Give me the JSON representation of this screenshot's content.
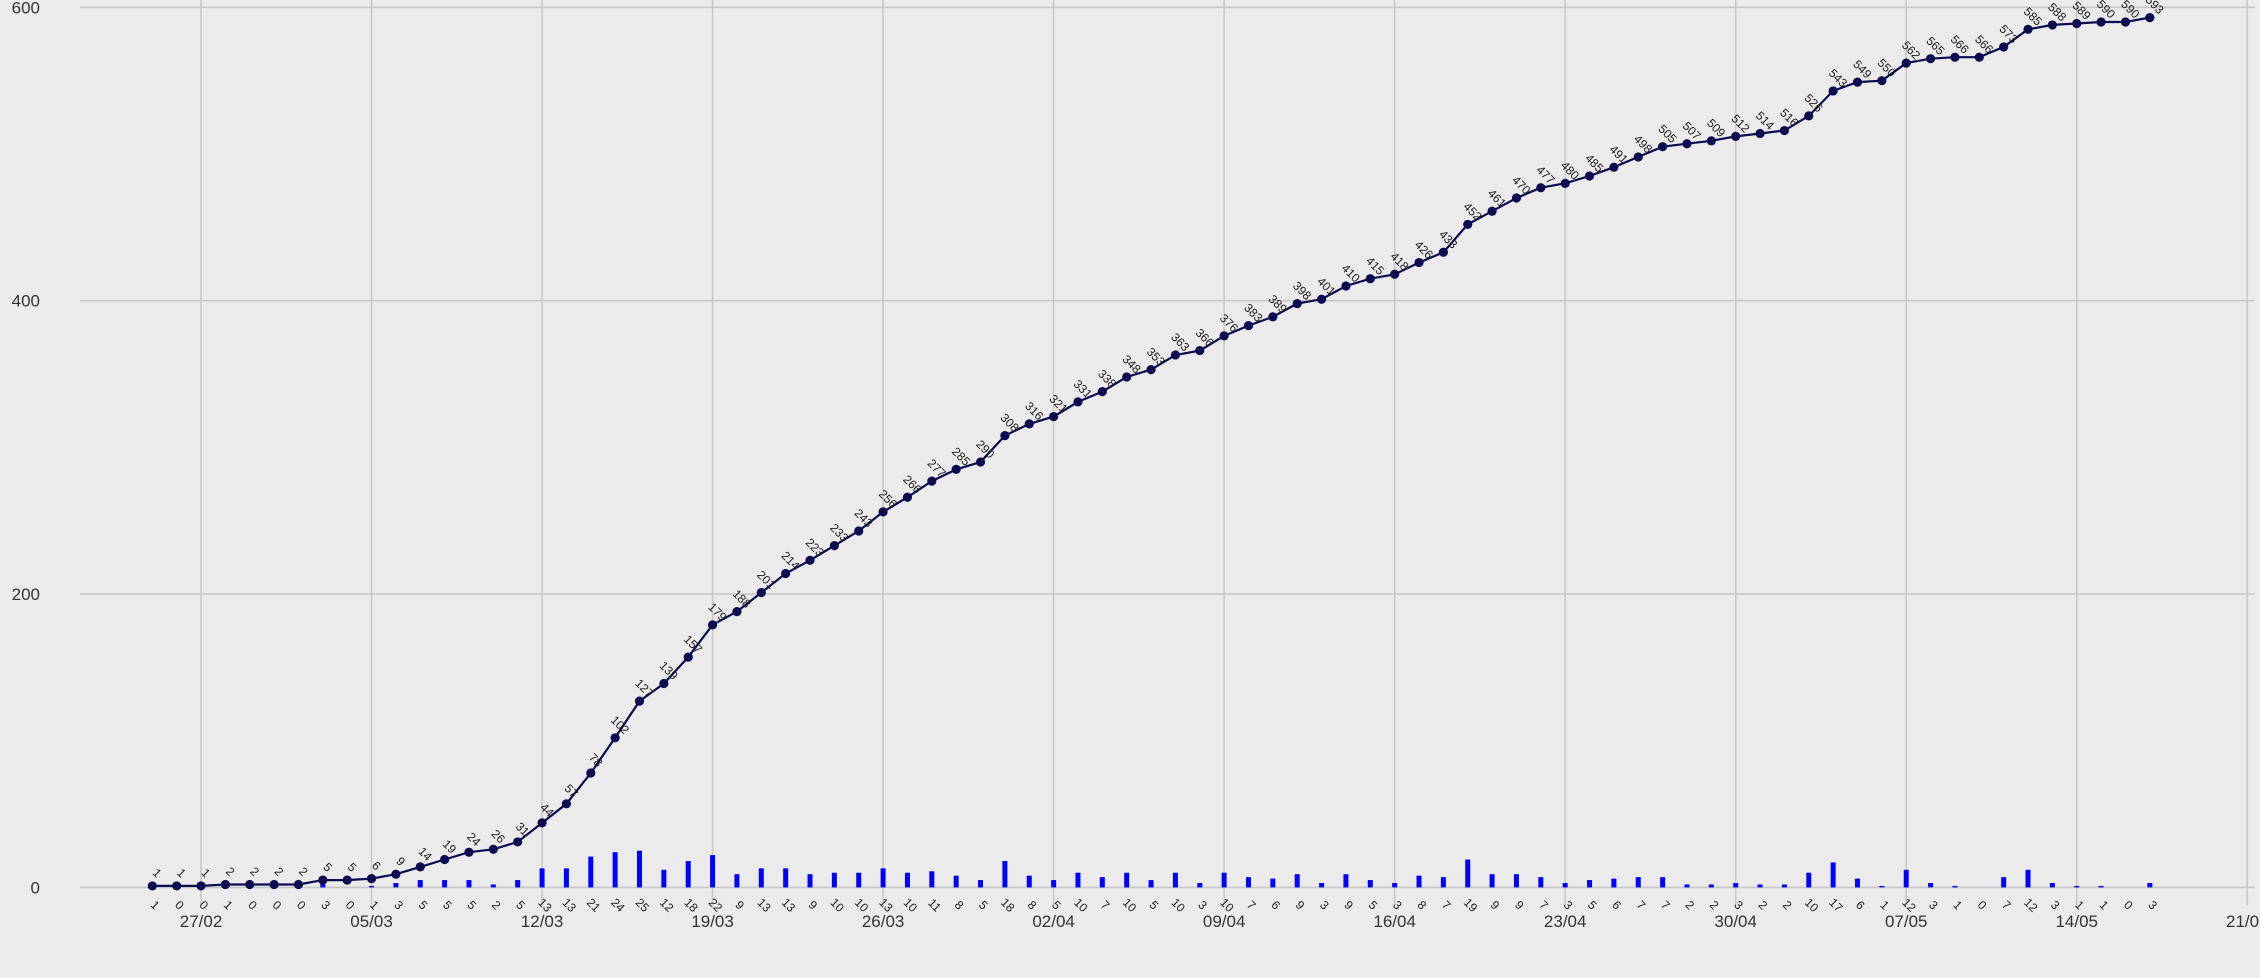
{
  "chart_data": {
    "type": "line",
    "title": "",
    "xlabel": "",
    "ylabel": "",
    "grid": true,
    "x_start": "25/02",
    "x_ticks": [
      "27/02",
      "05/03",
      "12/03",
      "19/03",
      "26/03",
      "02/04",
      "09/04",
      "16/04",
      "23/04",
      "30/04",
      "07/05",
      "14/05",
      "21/05"
    ],
    "y_ticks": [
      0,
      200,
      400,
      600
    ],
    "ylim": [
      -12,
      605
    ],
    "series": [
      {
        "type": "line",
        "color": "#0b0b4f",
        "values": [
          1,
          1,
          1,
          2,
          2,
          2,
          2,
          5,
          5,
          6,
          9,
          14,
          19,
          24,
          26,
          31,
          44,
          57,
          78,
          102,
          127,
          139,
          157,
          179,
          188,
          201,
          214,
          223,
          233,
          243,
          256,
          266,
          277,
          285,
          290,
          308,
          316,
          321,
          331,
          338,
          348,
          353,
          363,
          366,
          376,
          383,
          389,
          398,
          401,
          410,
          415,
          418,
          426,
          433,
          452,
          461,
          470,
          477,
          480,
          485,
          491,
          498,
          505,
          507,
          509,
          512,
          514,
          516,
          526,
          543,
          549,
          550,
          562,
          565,
          566,
          566,
          573,
          585,
          588,
          589,
          590,
          590,
          593
        ]
      },
      {
        "type": "bar",
        "color": "#0000ff",
        "values": [
          1,
          0,
          0,
          1,
          0,
          0,
          0,
          3,
          0,
          1,
          3,
          5,
          5,
          5,
          2,
          5,
          13,
          13,
          21,
          24,
          25,
          12,
          18,
          22,
          9,
          13,
          13,
          9,
          10,
          10,
          13,
          10,
          11,
          8,
          5,
          18,
          8,
          5,
          10,
          7,
          10,
          5,
          10,
          3,
          10,
          7,
          6,
          9,
          3,
          9,
          5,
          3,
          8,
          7,
          19,
          9,
          9,
          7,
          3,
          5,
          6,
          7,
          7,
          2,
          2,
          3,
          2,
          2,
          10,
          17,
          6,
          1,
          12,
          3,
          1,
          0,
          7,
          12,
          3,
          1,
          1,
          0,
          3
        ]
      }
    ]
  }
}
